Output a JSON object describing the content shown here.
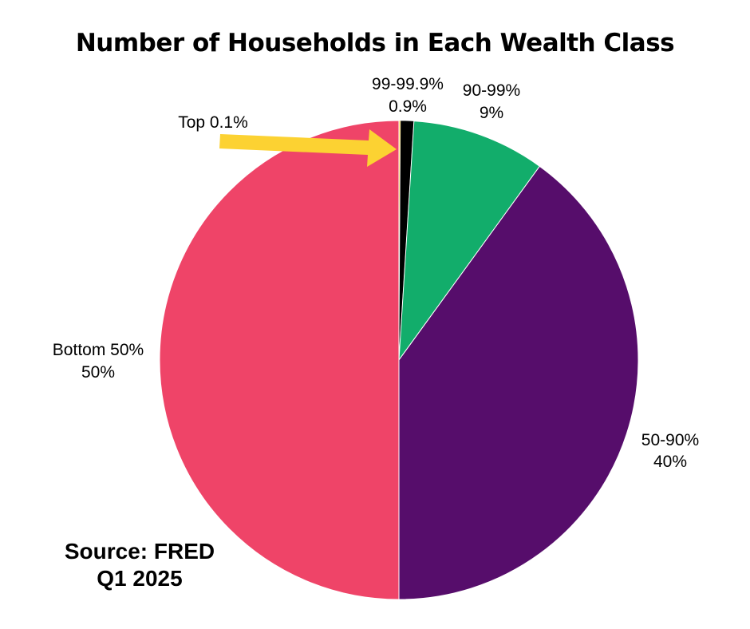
{
  "title": "Number of Households in Each Wealth Class",
  "source": {
    "line1": "Source: FRED",
    "line2": "Q1 2025"
  },
  "colors": {
    "top_0_1": "#fcd232",
    "p99_99_9": "#000000",
    "p90_99": "#12ad6b",
    "p50_90": "#560d6b",
    "bottom_50": "#ef4468",
    "arrow": "#fcd232"
  },
  "chart_data": {
    "type": "pie",
    "start_angle_deg": 0,
    "direction": "clockwise",
    "slices": [
      {
        "name": "Top 0.1%",
        "value": 0.1,
        "label": "",
        "color": "#fcd232"
      },
      {
        "name": "99-99.9%",
        "value": 0.9,
        "label": "0.9%",
        "color": "#000000"
      },
      {
        "name": "90-99%",
        "value": 9,
        "label": "9%",
        "color": "#12ad6b"
      },
      {
        "name": "50-90%",
        "value": 40,
        "label": "40%",
        "color": "#560d6b"
      },
      {
        "name": "Bottom 50%",
        "value": 50,
        "label": "50%",
        "color": "#ef4468"
      }
    ],
    "annotation": {
      "text": "Top 0.1%",
      "arrow_to": "Top 0.1%"
    }
  }
}
